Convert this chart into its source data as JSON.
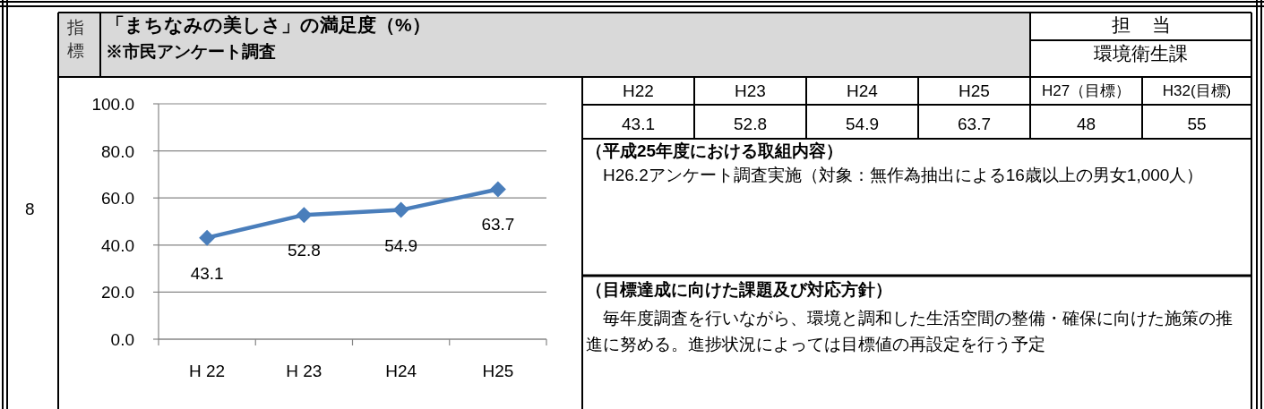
{
  "chart_data": {
    "type": "line",
    "title": "「まちなみの美しさ」の満足度（%）",
    "subtitle": "※市民アンケート調査",
    "categories": [
      "H 22",
      "H 23",
      "H24",
      "H25"
    ],
    "series": [
      {
        "color": "#4a7ebb",
        "values": [
          43.1,
          52.8,
          54.9,
          63.7
        ]
      }
    ],
    "ylim": [
      0,
      100
    ],
    "yticks": [
      {
        "value": 0,
        "label": "0.0"
      },
      {
        "value": 20,
        "label": "20.0"
      },
      {
        "value": 40,
        "label": "40.0"
      },
      {
        "value": 60,
        "label": "60.0"
      },
      {
        "value": 80,
        "label": "80.0"
      },
      {
        "value": 100,
        "label": "100.0"
      }
    ],
    "grid": "y",
    "marker": "diamond",
    "line_style": "solid",
    "data_labels": true,
    "annotations": [
      "8",
      "指標",
      "担当",
      "環境衛生課",
      "H22",
      "H23",
      "H24",
      "H25",
      "H27（目標）",
      "H32(目標)",
      "43.1",
      "52.8",
      "54.9",
      "63.7",
      "48",
      "55",
      "（平成25年度における取組内容）",
      "　H26.2アンケート調査実施（対象：無作為抽出による16歳以上の男女1,000人）",
      "（目標達成に向けた課題及び対応方針）",
      "　毎年度調査を行いながら、環境と調和した生活空間の整備・確保に向けた施策の推進に努める。進捗状況によっては目標値の再設定を行う予定"
    ]
  }
}
